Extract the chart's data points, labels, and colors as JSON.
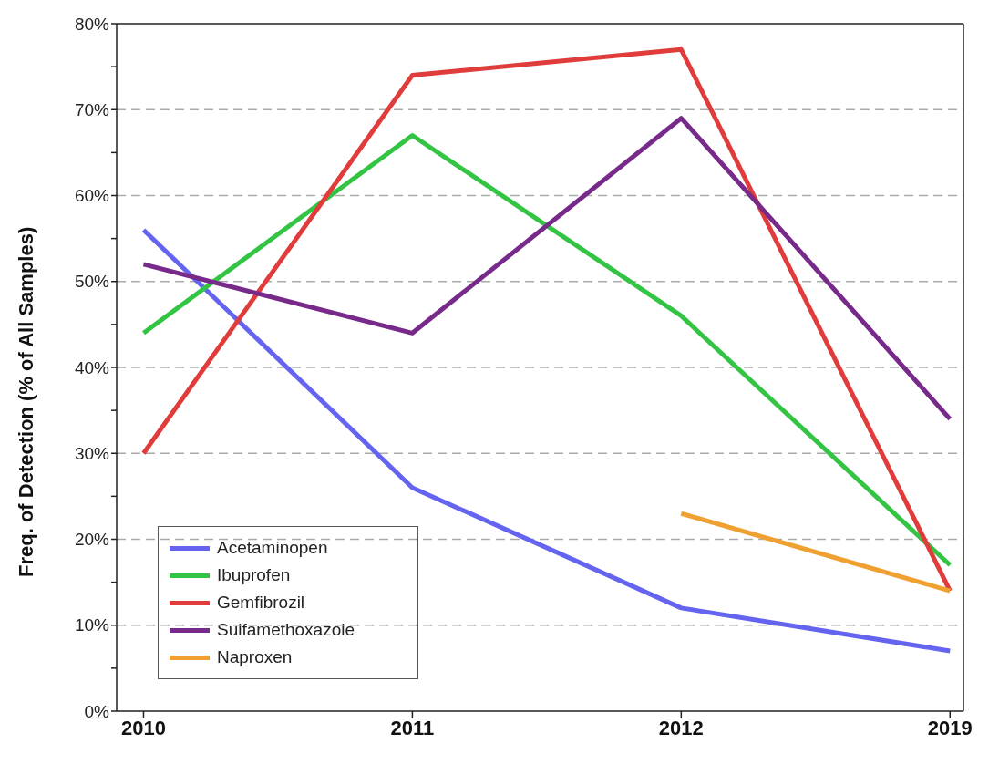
{
  "chart_data": {
    "type": "line",
    "ylabel": "Freq. of Detection  (% of All Samples)",
    "categories": [
      "2010",
      "2011",
      "2012",
      "2019"
    ],
    "series": [
      {
        "name": "Acetaminopen",
        "color": "#6464f0",
        "values": [
          56,
          26,
          12,
          7
        ]
      },
      {
        "name": "Ibuprofen",
        "color": "#33c444",
        "values": [
          44,
          67,
          46,
          17
        ]
      },
      {
        "name": "Gemfibrozil",
        "color": "#e03c3c",
        "values": [
          30,
          74,
          77,
          14
        ]
      },
      {
        "name": "Sulfamethoxazole",
        "color": "#772a8a",
        "values": [
          52,
          44,
          69,
          34
        ]
      },
      {
        "name": "Naproxen",
        "color": "#f0a030",
        "values": [
          null,
          null,
          23,
          14
        ]
      }
    ],
    "ylim": [
      0,
      80
    ],
    "yticks": [
      {
        "value": 0,
        "label": "0%"
      },
      {
        "value": 5,
        "label": null
      },
      {
        "value": 10,
        "label": "10%"
      },
      {
        "value": 15,
        "label": null
      },
      {
        "value": 20,
        "label": "20%"
      },
      {
        "value": 25,
        "label": null
      },
      {
        "value": 30,
        "label": "30%"
      },
      {
        "value": 35,
        "label": null
      },
      {
        "value": 40,
        "label": "40%"
      },
      {
        "value": 45,
        "label": null
      },
      {
        "value": 50,
        "label": "50%"
      },
      {
        "value": 55,
        "label": null
      },
      {
        "value": 60,
        "label": "60%"
      },
      {
        "value": 65,
        "label": null
      },
      {
        "value": 70,
        "label": "70%"
      },
      {
        "value": 75,
        "label": null
      },
      {
        "value": 80,
        "label": "80%"
      }
    ],
    "grid": "y",
    "legend": "bottom left",
    "marker": "none",
    "line_style": "solid"
  }
}
